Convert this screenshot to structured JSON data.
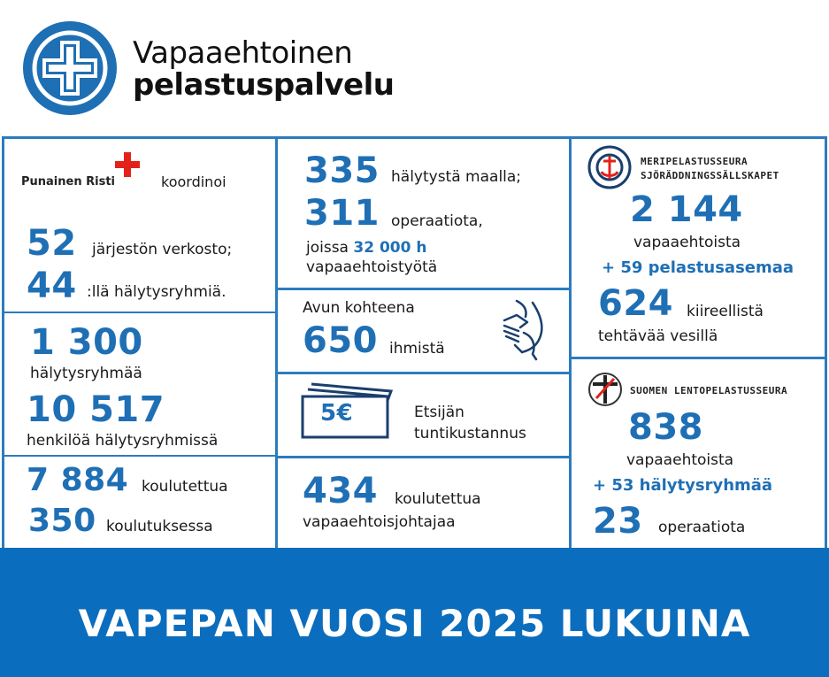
{
  "header": {
    "logo_line1": "Vapaaehtoinen",
    "logo_line2": "pelastuspalvelu",
    "logo_icon": "white-cross-in-blue-circle-icon",
    "brand_color": "#1f6fb5"
  },
  "col1": {
    "red_cross_name": "Punainen Risti",
    "red_cross_icon": "red-cross-icon",
    "coordinates": "koordinoi",
    "n1": "52",
    "n1_text": "järjestön verkosto;",
    "n2": "44",
    "n2_text": ":llä hälytysryhmiä.",
    "n3": "1 300",
    "n3_text": "hälytysryhmää",
    "n4": "10 517",
    "n4_text": "henkilöä hälytysryhmissä",
    "n5": "7 884",
    "n5_text": "koulutettua",
    "n6": "350",
    "n6_text": "koulutuksessa"
  },
  "col2": {
    "n1": "335",
    "n1_text": "hälytystä maalla;",
    "n2": "311",
    "n2_text": "operaatiota,",
    "n2_sub_pre": "joissa",
    "n2_sub_num": "32 000 h",
    "n2_sub_post": "vapaaehtoistyötä",
    "help_label": "Avun kohteena",
    "help_num": "650",
    "help_text": "ihmistä",
    "hands_icon": "helping-hands-icon",
    "money_badge": "5€",
    "money_icon": "banknotes-icon",
    "cost_line1": "Etsijän",
    "cost_line2": "tuntikustannus",
    "n3": "434",
    "n3_text": "koulutettua",
    "n3_sub": "vapaaehtoisjohtajaa"
  },
  "col3": {
    "sea_org_line1": "MERIPELASTUSSEURA",
    "sea_org_line2": "SJÖRÄDDNINGSSÄLLSKAPET",
    "sea_icon": "lifebuoy-anchor-icon",
    "sea_n1": "2 144",
    "sea_n1_text": "vapaaehtoista",
    "sea_stations": "+ 59 pelastusasemaa",
    "sea_n2": "624",
    "sea_n2_text": "kiireellistä",
    "sea_n2_sub": "tehtävää vesillä",
    "air_org": "SUOMEN LENTOPELASTUSSEURA",
    "air_icon": "air-rescue-emblem-icon",
    "air_n1": "838",
    "air_n1_text": "vapaaehtoista",
    "air_groups": "+ 53 hälytysryhmää",
    "air_n2": "23",
    "air_n2_text": "operaatiota"
  },
  "footer": {
    "title": "VAPEPAN VUOSI 2025 LUKUINA",
    "bg_color": "#0b6dbd"
  }
}
